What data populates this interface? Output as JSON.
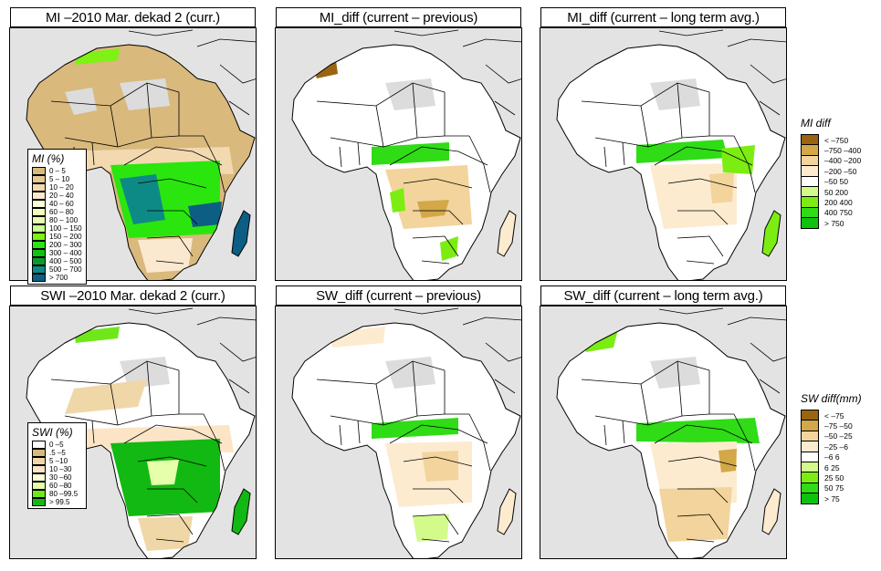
{
  "panels": [
    {
      "id": "mi-curr",
      "title": "MI –2010 Mar. dekad 2 (curr.)",
      "variable": "MI",
      "kind": "current",
      "legend": "mi_pct"
    },
    {
      "id": "mi-diff-prev",
      "title": "MI_diff (current – previous)",
      "variable": "MI_diff",
      "kind": "diff"
    },
    {
      "id": "mi-diff-lta",
      "title": "MI_diff (current – long term avg.)",
      "variable": "MI_diff",
      "kind": "diff"
    },
    {
      "id": "swi-curr",
      "title": "SWI –2010 Mar. dekad 2 (curr.)",
      "variable": "SWI",
      "kind": "current",
      "legend": "swi_pct"
    },
    {
      "id": "sw-diff-prev",
      "title": "SW_diff (current – previous)",
      "variable": "SW_diff",
      "kind": "diff"
    },
    {
      "id": "sw-diff-lta",
      "title": "SW_diff (current – long term avg.)",
      "variable": "SW_diff",
      "kind": "diff"
    }
  ],
  "legends": {
    "mi_pct": {
      "title": "MI (%)",
      "classes": [
        {
          "label": "0 – 5",
          "color": "#d9b97c"
        },
        {
          "label": "5 – 10",
          "color": "#e5c894"
        },
        {
          "label": "10 – 20",
          "color": "#f2d9b0"
        },
        {
          "label": "20 – 40",
          "color": "#fbe9cf"
        },
        {
          "label": "40 – 60",
          "color": "#fefed8"
        },
        {
          "label": "60 – 80",
          "color": "#f3ffb8"
        },
        {
          "label": "80 – 100",
          "color": "#e3ffb0"
        },
        {
          "label": "100 – 150",
          "color": "#c8ff8c"
        },
        {
          "label": "150 – 200",
          "color": "#7df214"
        },
        {
          "label": "200 – 300",
          "color": "#2ae60e"
        },
        {
          "label": "300 – 400",
          "color": "#10c210"
        },
        {
          "label": "400 – 500",
          "color": "#0c9a2c"
        },
        {
          "label": "500 – 700",
          "color": "#0e8a86"
        },
        {
          "label": "> 700",
          "color": "#0c5e84"
        }
      ]
    },
    "swi_pct": {
      "title": "SWI (%)",
      "classes": [
        {
          "label": "0 –5",
          "color": "#ffffff"
        },
        {
          "label": ".5 –5",
          "color": "#d9b97c"
        },
        {
          "label": "5 –10",
          "color": "#f0d7a8"
        },
        {
          "label": "10 –30",
          "color": "#fbe5c6"
        },
        {
          "label": "30 –60",
          "color": "#fefed8"
        },
        {
          "label": "60 –80",
          "color": "#e6ffaa"
        },
        {
          "label": "80 –99.5",
          "color": "#6fe81a"
        },
        {
          "label": "> 99.5",
          "color": "#12b912"
        }
      ]
    },
    "mi_diff": {
      "title": "MI diff",
      "classes": [
        {
          "label": "< –750",
          "color": "#9a6410"
        },
        {
          "label": "–750 –400",
          "color": "#d2a848"
        },
        {
          "label": "–400 –200",
          "color": "#f2d49c"
        },
        {
          "label": "–200  –50",
          "color": "#fdebd0"
        },
        {
          "label": "–50  50",
          "color": "#ffffff"
        },
        {
          "label": "50  200",
          "color": "#d2fb8c"
        },
        {
          "label": "200  400",
          "color": "#7ced12"
        },
        {
          "label": "400  750",
          "color": "#2fdc16"
        },
        {
          "label": "> 750",
          "color": "#0fc20f"
        }
      ]
    },
    "sw_diff": {
      "title": "SW diff(mm)",
      "classes": [
        {
          "label": "< –75",
          "color": "#9a6410"
        },
        {
          "label": "–75 –50",
          "color": "#d2a848"
        },
        {
          "label": "–50 –25",
          "color": "#f2d49c"
        },
        {
          "label": "–25  –6",
          "color": "#fdebd0"
        },
        {
          "label": "–6  6",
          "color": "#ffffff"
        },
        {
          "label": "6  25",
          "color": "#d2fb8c"
        },
        {
          "label": "25  50",
          "color": "#7ced12"
        },
        {
          "label": "50  75",
          "color": "#2fdc16"
        },
        {
          "label": "> 75",
          "color": "#0fc20f"
        }
      ]
    }
  },
  "colors": {
    "ocean": "#e3e3e3",
    "border": "#000000",
    "desert_nodata": "#dcdcdc"
  }
}
